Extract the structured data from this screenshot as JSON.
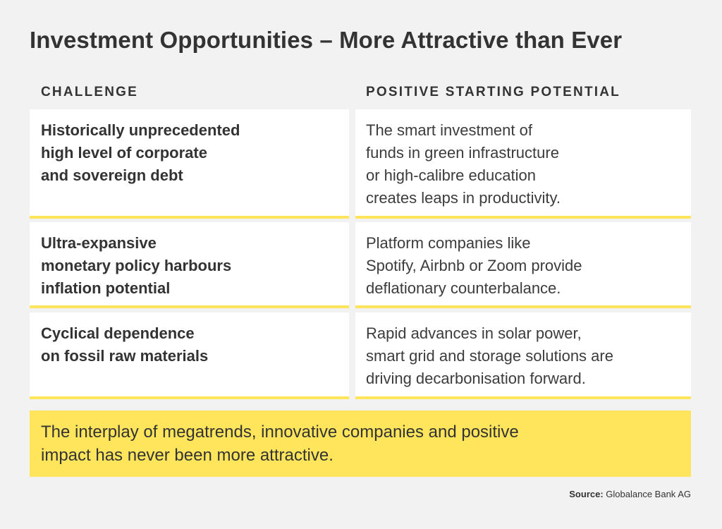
{
  "title": "Investment Opportunities – More Attractive than Ever",
  "columns": {
    "challenge": "CHALLENGE",
    "potential": "POSITIVE STARTING POTENTIAL"
  },
  "rows": [
    {
      "challenge_lines": [
        "Historically unprecedented",
        "high level of corporate",
        "and sovereign debt"
      ],
      "potential_lines": [
        "The smart investment of",
        "funds in green infrastructure",
        "or high-calibre education",
        "creates leaps in productivity."
      ]
    },
    {
      "challenge_lines": [
        "Ultra-expansive",
        "monetary policy harbours",
        "inflation potential"
      ],
      "potential_lines": [
        "Platform companies like",
        "Spotify, Airbnb or Zoom provide",
        "deflationary counterbalance."
      ]
    },
    {
      "challenge_lines": [
        "Cyclical dependence",
        "on fossil raw materials"
      ],
      "potential_lines": [
        "Rapid advances in solar power,",
        "smart grid and storage solutions are",
        "driving decarbonisation forward."
      ]
    }
  ],
  "conclusion_lines": [
    "The interplay of megatrends, innovative companies and positive",
    "impact has never been more attractive."
  ],
  "source": {
    "label": "Source:",
    "value": "Globalance Bank AG"
  },
  "colors": {
    "background": "#f2f2f2",
    "accent_yellow": "#ffe55c",
    "text": "#333333",
    "cell_background": "#ffffff"
  }
}
